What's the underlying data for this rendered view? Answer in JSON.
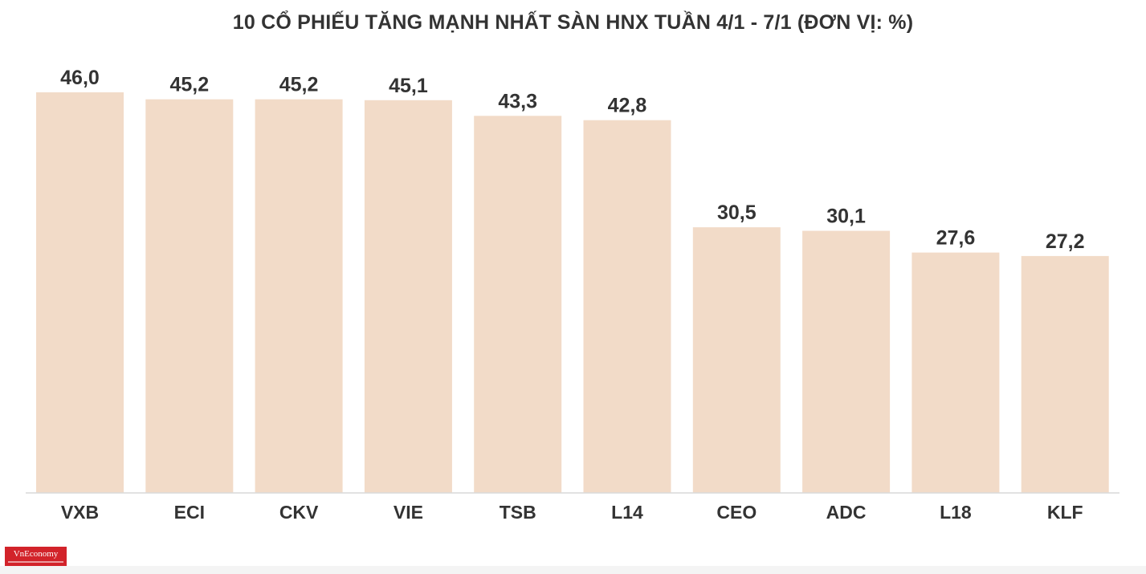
{
  "chart_data": {
    "type": "bar",
    "title": "10 CỔ PHIẾU TĂNG MẠNH NHẤT SÀN HNX TUẦN 4/1 - 7/1 (ĐƠN VỊ: %)",
    "categories": [
      "VXB",
      "ECI",
      "CKV",
      "VIE",
      "TSB",
      "L14",
      "CEO",
      "ADC",
      "L18",
      "KLF"
    ],
    "values": [
      46.0,
      45.2,
      45.2,
      45.1,
      43.3,
      42.8,
      30.5,
      30.1,
      27.6,
      27.2
    ],
    "value_labels": [
      "46,0",
      "45,2",
      "45,2",
      "45,1",
      "43,3",
      "42,8",
      "30,5",
      "30,1",
      "27,6",
      "27,2"
    ],
    "xlabel": "",
    "ylabel": "",
    "ylim": [
      0,
      46.0
    ],
    "grid": false,
    "legend": "none",
    "colors": {
      "bar": "#f2dbc8",
      "text": "#333333",
      "axis": "#d9d9d9"
    }
  },
  "branding": {
    "logo_text": "VnEconomy",
    "logo_color": "#d2232a"
  }
}
